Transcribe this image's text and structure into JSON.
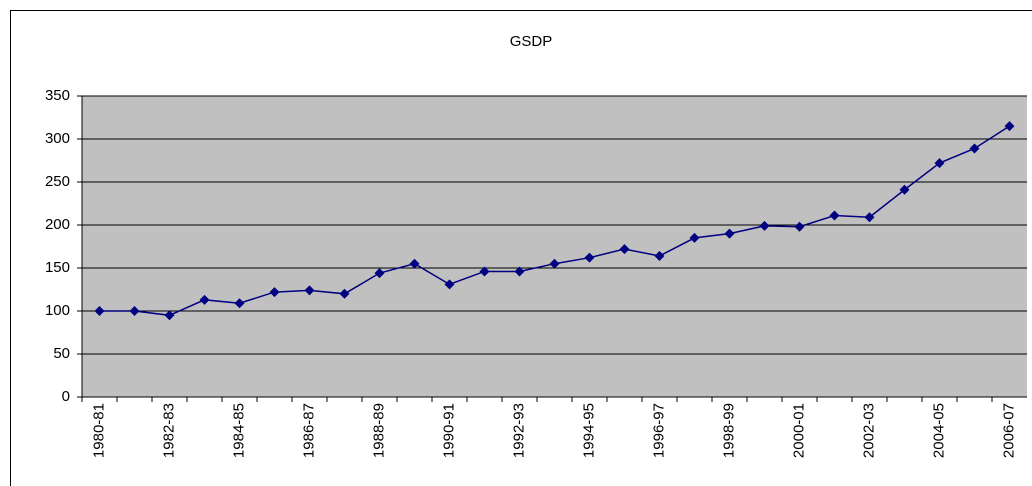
{
  "chart_data": {
    "type": "line",
    "title": "GSDP",
    "categories": [
      "1980-81",
      null,
      "1982-83",
      null,
      "1984-85",
      null,
      "1986-87",
      null,
      "1988-89",
      null,
      "1990-91",
      null,
      "1992-93",
      null,
      "1994-95",
      null,
      "1996-97",
      null,
      "1998-99",
      null,
      "2000-01",
      null,
      "2002-03",
      null,
      "2004-05",
      null,
      "2006-07"
    ],
    "series": [
      {
        "name": "GSDP",
        "color": "#000080",
        "values": [
          100,
          100,
          95,
          113,
          109,
          122,
          124,
          120,
          144,
          155,
          131,
          146,
          146,
          155,
          162,
          172,
          164,
          185,
          190,
          199,
          198,
          211,
          209,
          241,
          272,
          289,
          315
        ]
      }
    ],
    "ylim": [
      0,
      350
    ],
    "yticks": [
      0,
      50,
      100,
      150,
      200,
      250,
      300,
      350
    ],
    "grid": true
  }
}
